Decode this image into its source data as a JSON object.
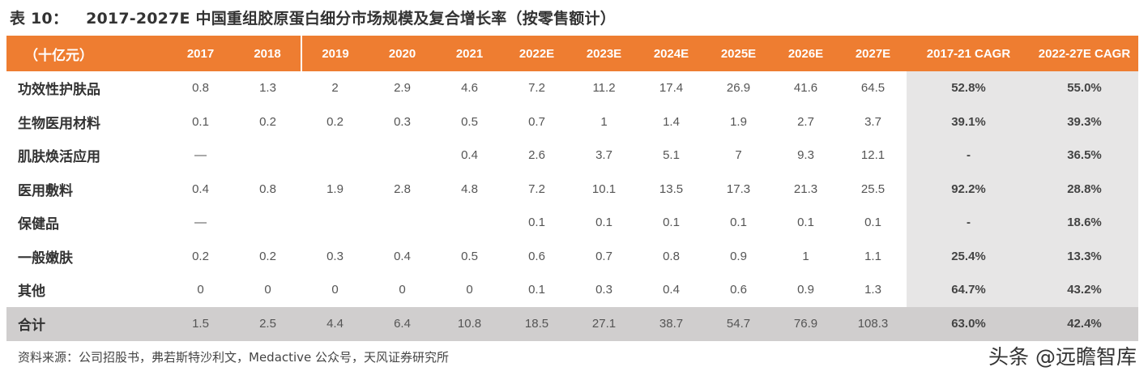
{
  "title": {
    "number": "表 10：",
    "text": "2017-2027E 中国重组胶原蛋白细分市场规模及复合增长率（按零售额计）"
  },
  "table": {
    "unit_header": "（十亿元）",
    "year_headers": [
      "2017",
      "2018",
      "2019",
      "2020",
      "2021",
      "2022E",
      "2023E",
      "2024E",
      "2025E",
      "2026E",
      "2027E"
    ],
    "cagr_headers": [
      "2017-21 CAGR",
      "2022-27E CAGR"
    ],
    "rows": [
      {
        "name": "功效性护肤品",
        "values": [
          "0.8",
          "1.3",
          "2",
          "2.9",
          "4.6",
          "7.2",
          "11.2",
          "17.4",
          "26.9",
          "41.6",
          "64.5"
        ],
        "cagr": [
          "52.8%",
          "55.0%"
        ]
      },
      {
        "name": "生物医用材料",
        "values": [
          "0.1",
          "0.2",
          "0.2",
          "0.3",
          "0.5",
          "0.7",
          "1",
          "1.4",
          "1.9",
          "2.7",
          "3.7"
        ],
        "cagr": [
          "39.1%",
          "39.3%"
        ]
      },
      {
        "name": "肌肤焕活应用",
        "values": [
          "—",
          "",
          "",
          "",
          "0.4",
          "2.6",
          "3.7",
          "5.1",
          "7",
          "9.3",
          "12.1"
        ],
        "cagr": [
          "-",
          "36.5%"
        ]
      },
      {
        "name": "医用敷料",
        "values": [
          "0.4",
          "0.8",
          "1.9",
          "2.8",
          "4.8",
          "7.2",
          "10.1",
          "13.5",
          "17.3",
          "21.3",
          "25.5"
        ],
        "cagr": [
          "92.2%",
          "28.8%"
        ]
      },
      {
        "name": "保健品",
        "values": [
          "—",
          "",
          "",
          "",
          "",
          "0.1",
          "0.1",
          "0.1",
          "0.1",
          "0.1",
          "0.1"
        ],
        "cagr": [
          "-",
          "18.6%"
        ]
      },
      {
        "name": "一般嫩肤",
        "values": [
          "0.2",
          "0.2",
          "0.3",
          "0.4",
          "0.5",
          "0.6",
          "0.7",
          "0.8",
          "0.9",
          "1",
          "1.1"
        ],
        "cagr": [
          "25.4%",
          "13.3%"
        ]
      },
      {
        "name": "其他",
        "values": [
          "0",
          "0",
          "0",
          "0",
          "0",
          "0.1",
          "0.3",
          "0.4",
          "0.6",
          "0.9",
          "1.3"
        ],
        "cagr": [
          "64.7%",
          "43.2%"
        ]
      }
    ],
    "total": {
      "name": "合计",
      "values": [
        "1.5",
        "2.5",
        "4.4",
        "6.4",
        "10.8",
        "18.5",
        "27.1",
        "38.7",
        "54.7",
        "76.9",
        "108.3"
      ],
      "cagr": [
        "63.0%",
        "42.4%"
      ]
    }
  },
  "source": "资料来源：公司招股书，弗若斯特沙利文，Medactive 公众号，天风证券研究所",
  "watermark": "头条 @远瞻智库",
  "colors": {
    "header_bg": "#EE7D31",
    "cagr_bg": "#E7E6E6",
    "total_bg": "#D0CECE"
  }
}
